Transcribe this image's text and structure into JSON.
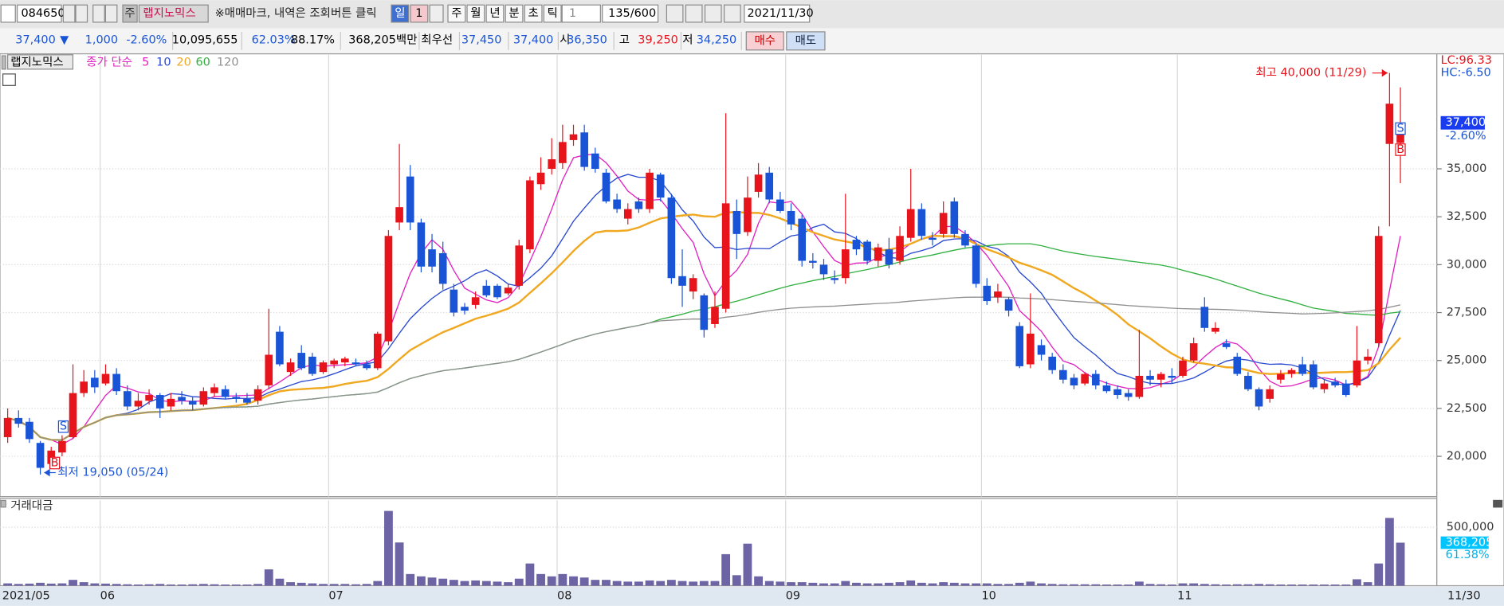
{
  "header": {
    "stock_code": "084650",
    "market_badge": "주",
    "stock_name": "랩지노믹스",
    "notice": "※매매마크, 내역은 조회버튼 클릭",
    "period_buttons": [
      "일",
      "1",
      "주",
      "월",
      "년",
      "분",
      "초",
      "틱"
    ],
    "tick_unit": "1",
    "count": "135/600",
    "date": "2021/11/30"
  },
  "quote": {
    "price": "37,400",
    "direction": "▼",
    "change": "1,000",
    "change_pct": "-2.60%",
    "volume": "10,095,655",
    "ratio1": "62.03%",
    "ratio2": "88.17%",
    "amount": "368,205백만",
    "best_label": "최우선",
    "ask": "37,450",
    "bid": "37,400",
    "open_label": "시",
    "open": "36,350",
    "high_label": "고",
    "high": "39,250",
    "low_label": "저",
    "low": "34,250",
    "buy": "매수",
    "sell": "매도"
  },
  "chart_data": {
    "type": "candlestick",
    "legend_name": "랩지노믹스",
    "ma_label": "종가 단순",
    "moving_averages": [
      {
        "period": 5,
        "color": "#e020c0"
      },
      {
        "period": 10,
        "color": "#2848d0"
      },
      {
        "period": 20,
        "color": "#f0a820"
      },
      {
        "period": 60,
        "color": "#30b040"
      },
      {
        "period": 120,
        "color": "#909090"
      }
    ],
    "up_color": "#e8141c",
    "down_color": "#1a54d6",
    "grid": true,
    "categories": [
      "2021/05",
      null,
      null,
      null,
      null,
      null,
      null,
      null,
      null,
      "06",
      null,
      null,
      null,
      null,
      null,
      null,
      null,
      null,
      null,
      null,
      null,
      null,
      null,
      null,
      null,
      null,
      null,
      null,
      null,
      null,
      "07",
      null,
      null,
      null,
      null,
      null,
      null,
      null,
      null,
      null,
      null,
      null,
      null,
      null,
      null,
      null,
      null,
      null,
      null,
      null,
      null,
      "08",
      null,
      null,
      null,
      null,
      null,
      null,
      null,
      null,
      null,
      null,
      null,
      null,
      null,
      null,
      null,
      null,
      null,
      null,
      null,
      null,
      "09",
      null,
      null,
      null,
      null,
      null,
      null,
      null,
      null,
      null,
      null,
      null,
      null,
      null,
      null,
      null,
      null,
      null,
      "10",
      null,
      null,
      null,
      null,
      null,
      null,
      null,
      null,
      null,
      null,
      null,
      null,
      null,
      null,
      null,
      null,
      null,
      "11",
      null,
      null,
      null,
      null,
      null,
      null,
      null,
      null,
      null,
      null,
      null,
      null,
      null,
      null,
      null,
      null,
      null,
      null,
      null,
      null
    ],
    "ohlc": [
      [
        21000,
        22500,
        20700,
        22000
      ],
      [
        22000,
        22400,
        21500,
        21700
      ],
      [
        21800,
        22000,
        20700,
        20900
      ],
      [
        20700,
        20800,
        19050,
        19400
      ],
      [
        19600,
        20500,
        19400,
        20300
      ],
      [
        20200,
        21100,
        20000,
        20800
      ],
      [
        21000,
        24800,
        20900,
        23300
      ],
      [
        23300,
        24500,
        23100,
        23900
      ],
      [
        24100,
        24500,
        23300,
        23600
      ],
      [
        23800,
        24800,
        23700,
        24300
      ],
      [
        24300,
        24600,
        23200,
        23400
      ],
      [
        23400,
        23700,
        22400,
        22600
      ],
      [
        22600,
        23300,
        22400,
        22900
      ],
      [
        22900,
        23500,
        22700,
        23200
      ],
      [
        23200,
        23300,
        22000,
        22500
      ],
      [
        22600,
        23300,
        22400,
        23000
      ],
      [
        23100,
        23400,
        22700,
        22900
      ],
      [
        22900,
        23100,
        22400,
        22700
      ],
      [
        22700,
        23600,
        22600,
        23400
      ],
      [
        23300,
        23800,
        23100,
        23600
      ],
      [
        23500,
        23700,
        23000,
        23100
      ],
      [
        23100,
        23300,
        22800,
        23000
      ],
      [
        23000,
        23300,
        22700,
        22800
      ],
      [
        22900,
        23700,
        22700,
        23500
      ],
      [
        23700,
        27700,
        23500,
        25300
      ],
      [
        26500,
        26800,
        24700,
        24800
      ],
      [
        24400,
        25100,
        24200,
        24900
      ],
      [
        25400,
        25800,
        24500,
        24600
      ],
      [
        25200,
        25400,
        24200,
        24300
      ],
      [
        24400,
        25000,
        24300,
        24900
      ],
      [
        24800,
        25100,
        24600,
        25000
      ],
      [
        24900,
        25200,
        24700,
        25100
      ],
      [
        24900,
        25100,
        24700,
        24800
      ],
      [
        24800,
        25000,
        24500,
        24600
      ],
      [
        24600,
        26500,
        24500,
        26400
      ],
      [
        26000,
        31800,
        25800,
        31500
      ],
      [
        32200,
        36300,
        31800,
        33000
      ],
      [
        34600,
        35200,
        31800,
        32200
      ],
      [
        32200,
        32400,
        29600,
        29900
      ],
      [
        30800,
        31600,
        29600,
        29900
      ],
      [
        30600,
        31200,
        28700,
        29000
      ],
      [
        28700,
        29000,
        27300,
        27500
      ],
      [
        27800,
        28000,
        27400,
        27600
      ],
      [
        27900,
        28600,
        27700,
        28300
      ],
      [
        28900,
        29200,
        28300,
        28400
      ],
      [
        28900,
        29000,
        28200,
        28300
      ],
      [
        28500,
        29000,
        28400,
        28800
      ],
      [
        28900,
        31300,
        28700,
        31000
      ],
      [
        30800,
        34600,
        30600,
        34400
      ],
      [
        34200,
        35600,
        33900,
        34800
      ],
      [
        35000,
        36600,
        34700,
        35500
      ],
      [
        35300,
        37300,
        35000,
        36400
      ],
      [
        36500,
        37300,
        36200,
        36800
      ],
      [
        36900,
        37300,
        34900,
        35100
      ],
      [
        35800,
        36100,
        34800,
        35000
      ],
      [
        34800,
        35000,
        33200,
        33300
      ],
      [
        33400,
        33700,
        32700,
        32900
      ],
      [
        32400,
        33200,
        32100,
        32900
      ],
      [
        33300,
        33500,
        32700,
        32900
      ],
      [
        32900,
        35000,
        32700,
        34800
      ],
      [
        34700,
        34800,
        33300,
        33500
      ],
      [
        33500,
        33700,
        29000,
        29300
      ],
      [
        29400,
        30800,
        27800,
        28900
      ],
      [
        28600,
        29500,
        28200,
        29300
      ],
      [
        28400,
        28500,
        26200,
        26600
      ],
      [
        26900,
        28600,
        26700,
        27800
      ],
      [
        27700,
        37900,
        27500,
        33200
      ],
      [
        32800,
        33400,
        30300,
        31600
      ],
      [
        31700,
        34600,
        31500,
        33500
      ],
      [
        33800,
        35300,
        33500,
        34700
      ],
      [
        34800,
        35100,
        33200,
        33400
      ],
      [
        33400,
        33800,
        32700,
        32800
      ],
      [
        32800,
        33200,
        31800,
        32100
      ],
      [
        32400,
        32600,
        29900,
        30200
      ],
      [
        30200,
        30600,
        29800,
        30100
      ],
      [
        30000,
        30300,
        29200,
        29500
      ],
      [
        29300,
        29700,
        29000,
        29200
      ],
      [
        29300,
        33700,
        29000,
        30800
      ],
      [
        31300,
        31500,
        30500,
        30800
      ],
      [
        31200,
        31300,
        30000,
        30200
      ],
      [
        30200,
        31100,
        29900,
        30900
      ],
      [
        30800,
        31400,
        29800,
        30000
      ],
      [
        30200,
        32000,
        30000,
        31500
      ],
      [
        31400,
        35000,
        31200,
        32900
      ],
      [
        32900,
        33200,
        31300,
        31500
      ],
      [
        31400,
        31700,
        31000,
        31300
      ],
      [
        31600,
        33300,
        31400,
        32700
      ],
      [
        33300,
        33500,
        31400,
        31600
      ],
      [
        31600,
        31800,
        30900,
        31000
      ],
      [
        31000,
        31100,
        28800,
        29000
      ],
      [
        28900,
        29300,
        27900,
        28100
      ],
      [
        28300,
        29000,
        28000,
        28600
      ],
      [
        28200,
        28300,
        27300,
        27600
      ],
      [
        26800,
        27000,
        24600,
        24700
      ],
      [
        24800,
        28500,
        24600,
        26400
      ],
      [
        25800,
        26100,
        25000,
        25300
      ],
      [
        25200,
        25400,
        24300,
        24500
      ],
      [
        24500,
        24800,
        23800,
        24000
      ],
      [
        24100,
        24300,
        23500,
        23700
      ],
      [
        23800,
        24400,
        23700,
        24300
      ],
      [
        24300,
        24500,
        23500,
        23700
      ],
      [
        23700,
        23900,
        23300,
        23400
      ],
      [
        23500,
        23700,
        23000,
        23200
      ],
      [
        23300,
        23500,
        22900,
        23100
      ],
      [
        23100,
        26600,
        23000,
        24200
      ],
      [
        24200,
        24500,
        23700,
        24000
      ],
      [
        24000,
        24400,
        23600,
        24300
      ],
      [
        24200,
        24600,
        23800,
        24100
      ],
      [
        24200,
        25200,
        24100,
        25000
      ],
      [
        25000,
        26200,
        24900,
        25900
      ],
      [
        27800,
        28300,
        26500,
        26700
      ],
      [
        26500,
        27000,
        26400,
        26700
      ],
      [
        25900,
        26100,
        25600,
        25700
      ],
      [
        25200,
        25400,
        24200,
        24300
      ],
      [
        24200,
        24400,
        23400,
        23500
      ],
      [
        23500,
        23600,
        22400,
        22600
      ],
      [
        23000,
        23700,
        22800,
        23500
      ],
      [
        24000,
        24500,
        23800,
        24300
      ],
      [
        24300,
        24600,
        24100,
        24500
      ],
      [
        24800,
        25200,
        24200,
        24300
      ],
      [
        24800,
        25000,
        23500,
        23600
      ],
      [
        23500,
        24000,
        23300,
        23800
      ],
      [
        23900,
        24100,
        23600,
        23700
      ],
      [
        23800,
        24000,
        23100,
        23200
      ],
      [
        23700,
        26800,
        23600,
        25000
      ],
      [
        25000,
        25600,
        24800,
        25200
      ],
      [
        25900,
        32000,
        25700,
        31500
      ],
      [
        36300,
        40000,
        32000,
        38400
      ],
      [
        36350,
        39250,
        34250,
        37400
      ]
    ],
    "ylim": [
      17900,
      40950
    ],
    "yticks": [
      {
        "value": 20000,
        "label": "20,000"
      },
      {
        "value": 22500,
        "label": "22,500"
      },
      {
        "value": 25000,
        "label": "25,000"
      },
      {
        "value": 27500,
        "label": "27,500"
      },
      {
        "value": 30000,
        "label": "30,000"
      },
      {
        "value": 32500,
        "label": "32,500"
      },
      {
        "value": 35000,
        "label": "35,000"
      }
    ],
    "current": {
      "value": 37400,
      "label": "37,400"
    },
    "current_change": "-2.60%",
    "lc_label": "LC:96.33",
    "hc_label": "HC:-6.50",
    "annotations": [
      {
        "value": 40000,
        "index": 127,
        "label": "최고 40,000 (11/29)",
        "color": "#e8141c"
      },
      {
        "value": 19050,
        "index": 3,
        "label": "최저 19,050 (05/24)",
        "color": "#1a54d6"
      }
    ],
    "volume_panel": {
      "title": "거래대금",
      "color": "#6c64a4",
      "values": [
        20000,
        15000,
        18000,
        25000,
        18000,
        20000,
        50000,
        30000,
        20000,
        18000,
        15000,
        12000,
        10000,
        12000,
        15000,
        10000,
        10000,
        12000,
        15000,
        12000,
        10000,
        10000,
        10000,
        15000,
        140000,
        60000,
        30000,
        25000,
        20000,
        15000,
        15000,
        15000,
        12000,
        15000,
        40000,
        640000,
        370000,
        100000,
        80000,
        70000,
        60000,
        50000,
        40000,
        45000,
        40000,
        35000,
        30000,
        60000,
        190000,
        100000,
        80000,
        100000,
        80000,
        70000,
        50000,
        50000,
        40000,
        35000,
        35000,
        45000,
        40000,
        50000,
        40000,
        35000,
        40000,
        40000,
        270000,
        90000,
        360000,
        80000,
        40000,
        35000,
        30000,
        30000,
        25000,
        20000,
        20000,
        40000,
        25000,
        20000,
        20000,
        25000,
        30000,
        45000,
        25000,
        20000,
        30000,
        25000,
        20000,
        20000,
        20000,
        15000,
        15000,
        25000,
        35000,
        20000,
        15000,
        12000,
        12000,
        12000,
        12000,
        10000,
        10000,
        10000,
        35000,
        15000,
        12000,
        10000,
        20000,
        20000,
        15000,
        12000,
        10000,
        12000,
        12000,
        15000,
        12000,
        10000,
        10000,
        10000,
        10000,
        10000,
        10000,
        10000,
        55000,
        30000,
        190000,
        580000,
        368205
      ],
      "ylim": [
        0,
        730000
      ],
      "yticks": [
        {
          "value": 500000,
          "label": "500,000"
        }
      ],
      "current": {
        "value": 368205,
        "label": "368,205"
      },
      "ratio": "61.38%"
    },
    "cursor_date": "11/30"
  }
}
